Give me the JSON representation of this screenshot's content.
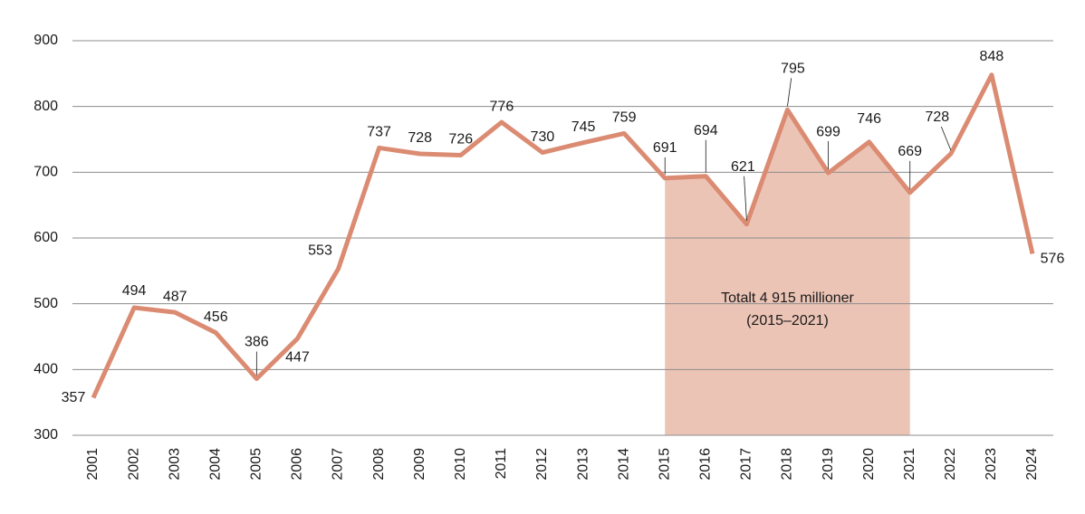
{
  "chart_data": {
    "type": "line",
    "categories": [
      "2001",
      "2002",
      "2003",
      "2004",
      "2005",
      "2006",
      "2007",
      "2008",
      "2009",
      "2010",
      "2011",
      "2012",
      "2013",
      "2014",
      "2015",
      "2016",
      "2017",
      "2018",
      "2019",
      "2020",
      "2021",
      "2022",
      "2023",
      "2024"
    ],
    "values": [
      357,
      494,
      487,
      456,
      386,
      447,
      553,
      737,
      728,
      726,
      776,
      730,
      745,
      759,
      691,
      694,
      621,
      795,
      699,
      746,
      669,
      728,
      848,
      576
    ],
    "color": "#db8b72",
    "ylim": [
      300,
      900
    ],
    "yticks": [
      300,
      400,
      500,
      600,
      700,
      800,
      900
    ],
    "grid": true,
    "highlight": {
      "start": "2015",
      "end": "2021",
      "color": "#ecc4b6"
    },
    "annotation": [
      "Totalt 4 915 millioner",
      "(2015–2021)"
    ]
  }
}
